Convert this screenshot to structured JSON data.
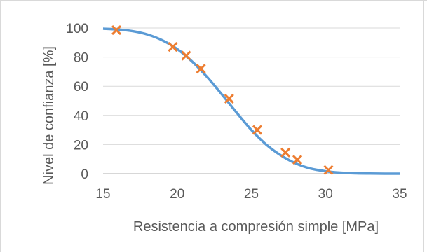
{
  "chart_data": {
    "type": "scatter",
    "title": "",
    "xlabel": "Resistencia a compresión simple [MPa]",
    "ylabel": "Nivel de confianza [%]",
    "xlim": [
      15,
      35
    ],
    "ylim": [
      0,
      100
    ],
    "x_ticks": [
      "15",
      "20",
      "25",
      "30",
      "35"
    ],
    "y_ticks": [
      "0",
      "20",
      "40",
      "60",
      "80",
      "100"
    ],
    "grid": "horizontal",
    "legend": "none",
    "series": [
      {
        "kind": "line",
        "color": "#5b9bd5",
        "x": [
          15,
          16,
          17,
          18,
          19,
          20,
          21,
          22,
          23,
          24,
          25,
          26,
          27,
          28,
          29,
          30,
          31,
          32,
          33,
          34,
          35
        ],
        "y": [
          99.5,
          99.0,
          97.8,
          95.5,
          91.5,
          85.5,
          77.0,
          66.5,
          54.5,
          42.0,
          30.0,
          20.0,
          12.5,
          7.0,
          3.5,
          1.7,
          0.7,
          0.25,
          0.1,
          0.03,
          0.0
        ]
      },
      {
        "kind": "markers",
        "marker": "x",
        "color": "#ed7d31",
        "x": [
          15.9,
          19.7,
          20.6,
          21.6,
          23.5,
          25.4,
          27.3,
          28.1,
          30.2
        ],
        "y": [
          98.5,
          87.0,
          81.0,
          72.0,
          51.5,
          30.0,
          14.5,
          9.5,
          2.5
        ]
      }
    ]
  }
}
